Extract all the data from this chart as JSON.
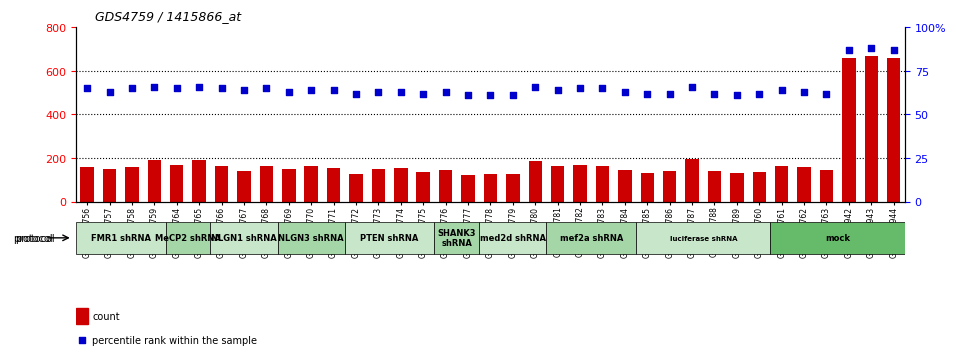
{
  "title": "GDS4759 / 1415866_at",
  "samples": [
    "GSM1145756",
    "GSM1145757",
    "GSM1145758",
    "GSM1145759",
    "GSM1145764",
    "GSM1145765",
    "GSM1145766",
    "GSM1145767",
    "GSM1145768",
    "GSM1145769",
    "GSM1145770",
    "GSM1145771",
    "GSM1145772",
    "GSM1145773",
    "GSM1145774",
    "GSM1145775",
    "GSM1145776",
    "GSM1145777",
    "GSM1145778",
    "GSM1145779",
    "GSM1145780",
    "GSM1145781",
    "GSM1145782",
    "GSM1145783",
    "GSM1145784",
    "GSM1145785",
    "GSM1145786",
    "GSM1145787",
    "GSM1145788",
    "GSM1145789",
    "GSM1145760",
    "GSM1145761",
    "GSM1145762",
    "GSM1145763",
    "GSM1145942",
    "GSM1145943",
    "GSM1145944"
  ],
  "counts": [
    160,
    148,
    160,
    190,
    168,
    193,
    162,
    140,
    165,
    148,
    163,
    155,
    125,
    148,
    152,
    135,
    145,
    120,
    125,
    125,
    185,
    165,
    170,
    165,
    145,
    132,
    138,
    195,
    140,
    130,
    135,
    162,
    158,
    147,
    660,
    670,
    660
  ],
  "percentiles": [
    65,
    63,
    65,
    66,
    65,
    66,
    65,
    64,
    65,
    63,
    64,
    64,
    62,
    63,
    63,
    62,
    63,
    61,
    61,
    61,
    66,
    64,
    65,
    65,
    63,
    62,
    62,
    66,
    62,
    61,
    62,
    64,
    63,
    62,
    87,
    88,
    87
  ],
  "protocols": [
    {
      "label": "FMR1 shRNA",
      "start": 0,
      "end": 4,
      "color": "#c8e6c9"
    },
    {
      "label": "MeCP2 shRNA",
      "start": 4,
      "end": 6,
      "color": "#a5d6a7"
    },
    {
      "label": "NLGN1 shRNA",
      "start": 6,
      "end": 9,
      "color": "#c8e6c9"
    },
    {
      "label": "NLGN3 shRNA",
      "start": 9,
      "end": 12,
      "color": "#a5d6a7"
    },
    {
      "label": "PTEN shRNA",
      "start": 12,
      "end": 16,
      "color": "#c8e6c9"
    },
    {
      "label": "SHANK3\nshRNA",
      "start": 16,
      "end": 18,
      "color": "#a5d6a7"
    },
    {
      "label": "med2d shRNA",
      "start": 18,
      "end": 21,
      "color": "#c8e6c9"
    },
    {
      "label": "mef2a shRNA",
      "start": 21,
      "end": 25,
      "color": "#a5d6a7"
    },
    {
      "label": "luciferase shRNA",
      "start": 25,
      "end": 31,
      "color": "#c8e6c9"
    },
    {
      "label": "mock",
      "start": 31,
      "end": 37,
      "color": "#66bb6a"
    }
  ],
  "bar_color": "#cc0000",
  "dot_color": "#0000cc",
  "left_ylim": [
    0,
    800
  ],
  "right_ylim": [
    0,
    100
  ],
  "left_yticks": [
    0,
    200,
    400,
    600,
    800
  ],
  "right_yticks": [
    0,
    25,
    50,
    75,
    100
  ],
  "right_yticklabels": [
    "0",
    "25",
    "50",
    "75",
    "100%"
  ],
  "background_color": "#ffffff",
  "plot_bg": "#ffffff",
  "grid_color": "#000000",
  "title_fontsize": 10,
  "bar_width": 0.6
}
